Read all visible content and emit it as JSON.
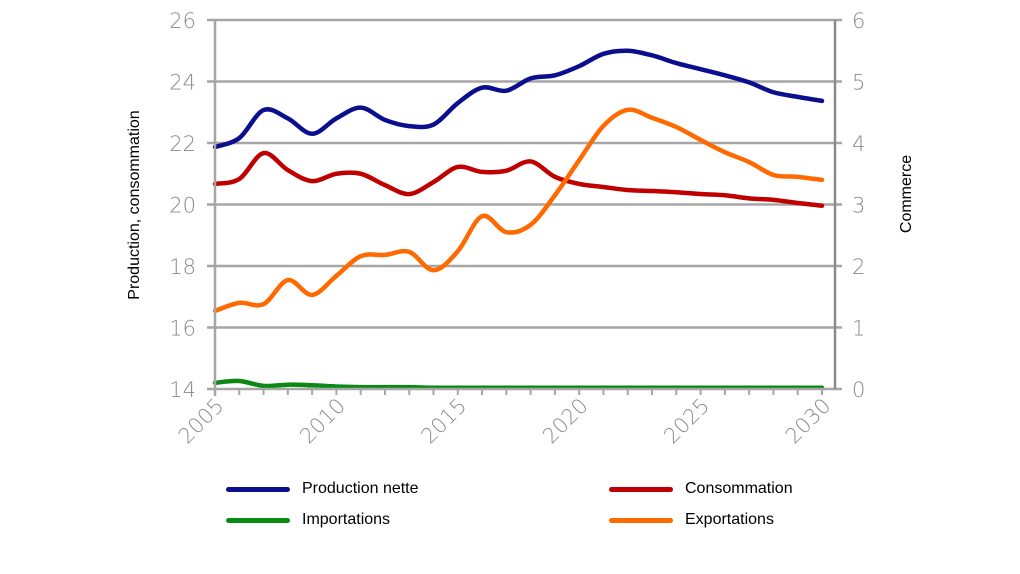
{
  "chart_data": {
    "type": "line",
    "title": "",
    "xlabel": "",
    "ylabel": "Production, consommation",
    "y2label": "Commerce",
    "x": [
      2005,
      2006,
      2007,
      2008,
      2009,
      2010,
      2011,
      2012,
      2013,
      2014,
      2015,
      2016,
      2017,
      2018,
      2019,
      2020,
      2021,
      2022,
      2023,
      2024,
      2025,
      2026,
      2027,
      2028,
      2029,
      2030
    ],
    "xlim": [
      2005,
      2030
    ],
    "x_ticks": [
      "2005",
      "2010",
      "2015",
      "2020",
      "2025",
      "2030"
    ],
    "ylim": [
      14,
      26
    ],
    "y_ticks": [
      "14",
      "16",
      "18",
      "20",
      "22",
      "24",
      "26"
    ],
    "y2lim": [
      0,
      6
    ],
    "y2_ticks": [
      "0",
      "1",
      "2",
      "3",
      "4",
      "5",
      "6"
    ],
    "grid": true,
    "legend_position": "bottom",
    "series": [
      {
        "name": "Production nette",
        "axis": "left",
        "color": "#0b0f8e",
        "values": [
          21.87,
          22.16,
          23.07,
          22.8,
          22.3,
          22.8,
          23.15,
          22.75,
          22.55,
          22.6,
          23.3,
          23.8,
          23.7,
          24.1,
          24.2,
          24.5,
          24.9,
          25.0,
          24.85,
          24.6,
          24.4,
          24.2,
          23.97,
          23.65,
          23.5,
          23.37
        ]
      },
      {
        "name": "Consommation",
        "axis": "left",
        "color": "#c00000",
        "values": [
          20.67,
          20.83,
          21.67,
          21.12,
          20.76,
          21.0,
          21.0,
          20.63,
          20.34,
          20.73,
          21.22,
          21.06,
          21.1,
          21.4,
          20.9,
          20.67,
          20.57,
          20.47,
          20.44,
          20.4,
          20.34,
          20.3,
          20.2,
          20.15,
          20.05,
          19.96
        ]
      },
      {
        "name": "Importations",
        "axis": "right",
        "color": "#0a8a12",
        "values": [
          0.1,
          0.13,
          0.05,
          0.07,
          0.06,
          0.04,
          0.03,
          0.03,
          0.03,
          0.02,
          0.02,
          0.02,
          0.02,
          0.02,
          0.02,
          0.02,
          0.02,
          0.02,
          0.02,
          0.02,
          0.02,
          0.02,
          0.02,
          0.02,
          0.02,
          0.02
        ]
      },
      {
        "name": "Exportations",
        "axis": "right",
        "color": "#ff6a00",
        "values": [
          1.27,
          1.4,
          1.38,
          1.77,
          1.53,
          1.84,
          2.16,
          2.18,
          2.23,
          1.93,
          2.24,
          2.81,
          2.55,
          2.67,
          3.15,
          3.72,
          4.28,
          4.54,
          4.41,
          4.26,
          4.05,
          3.85,
          3.69,
          3.48,
          3.45,
          3.4
        ]
      }
    ]
  }
}
